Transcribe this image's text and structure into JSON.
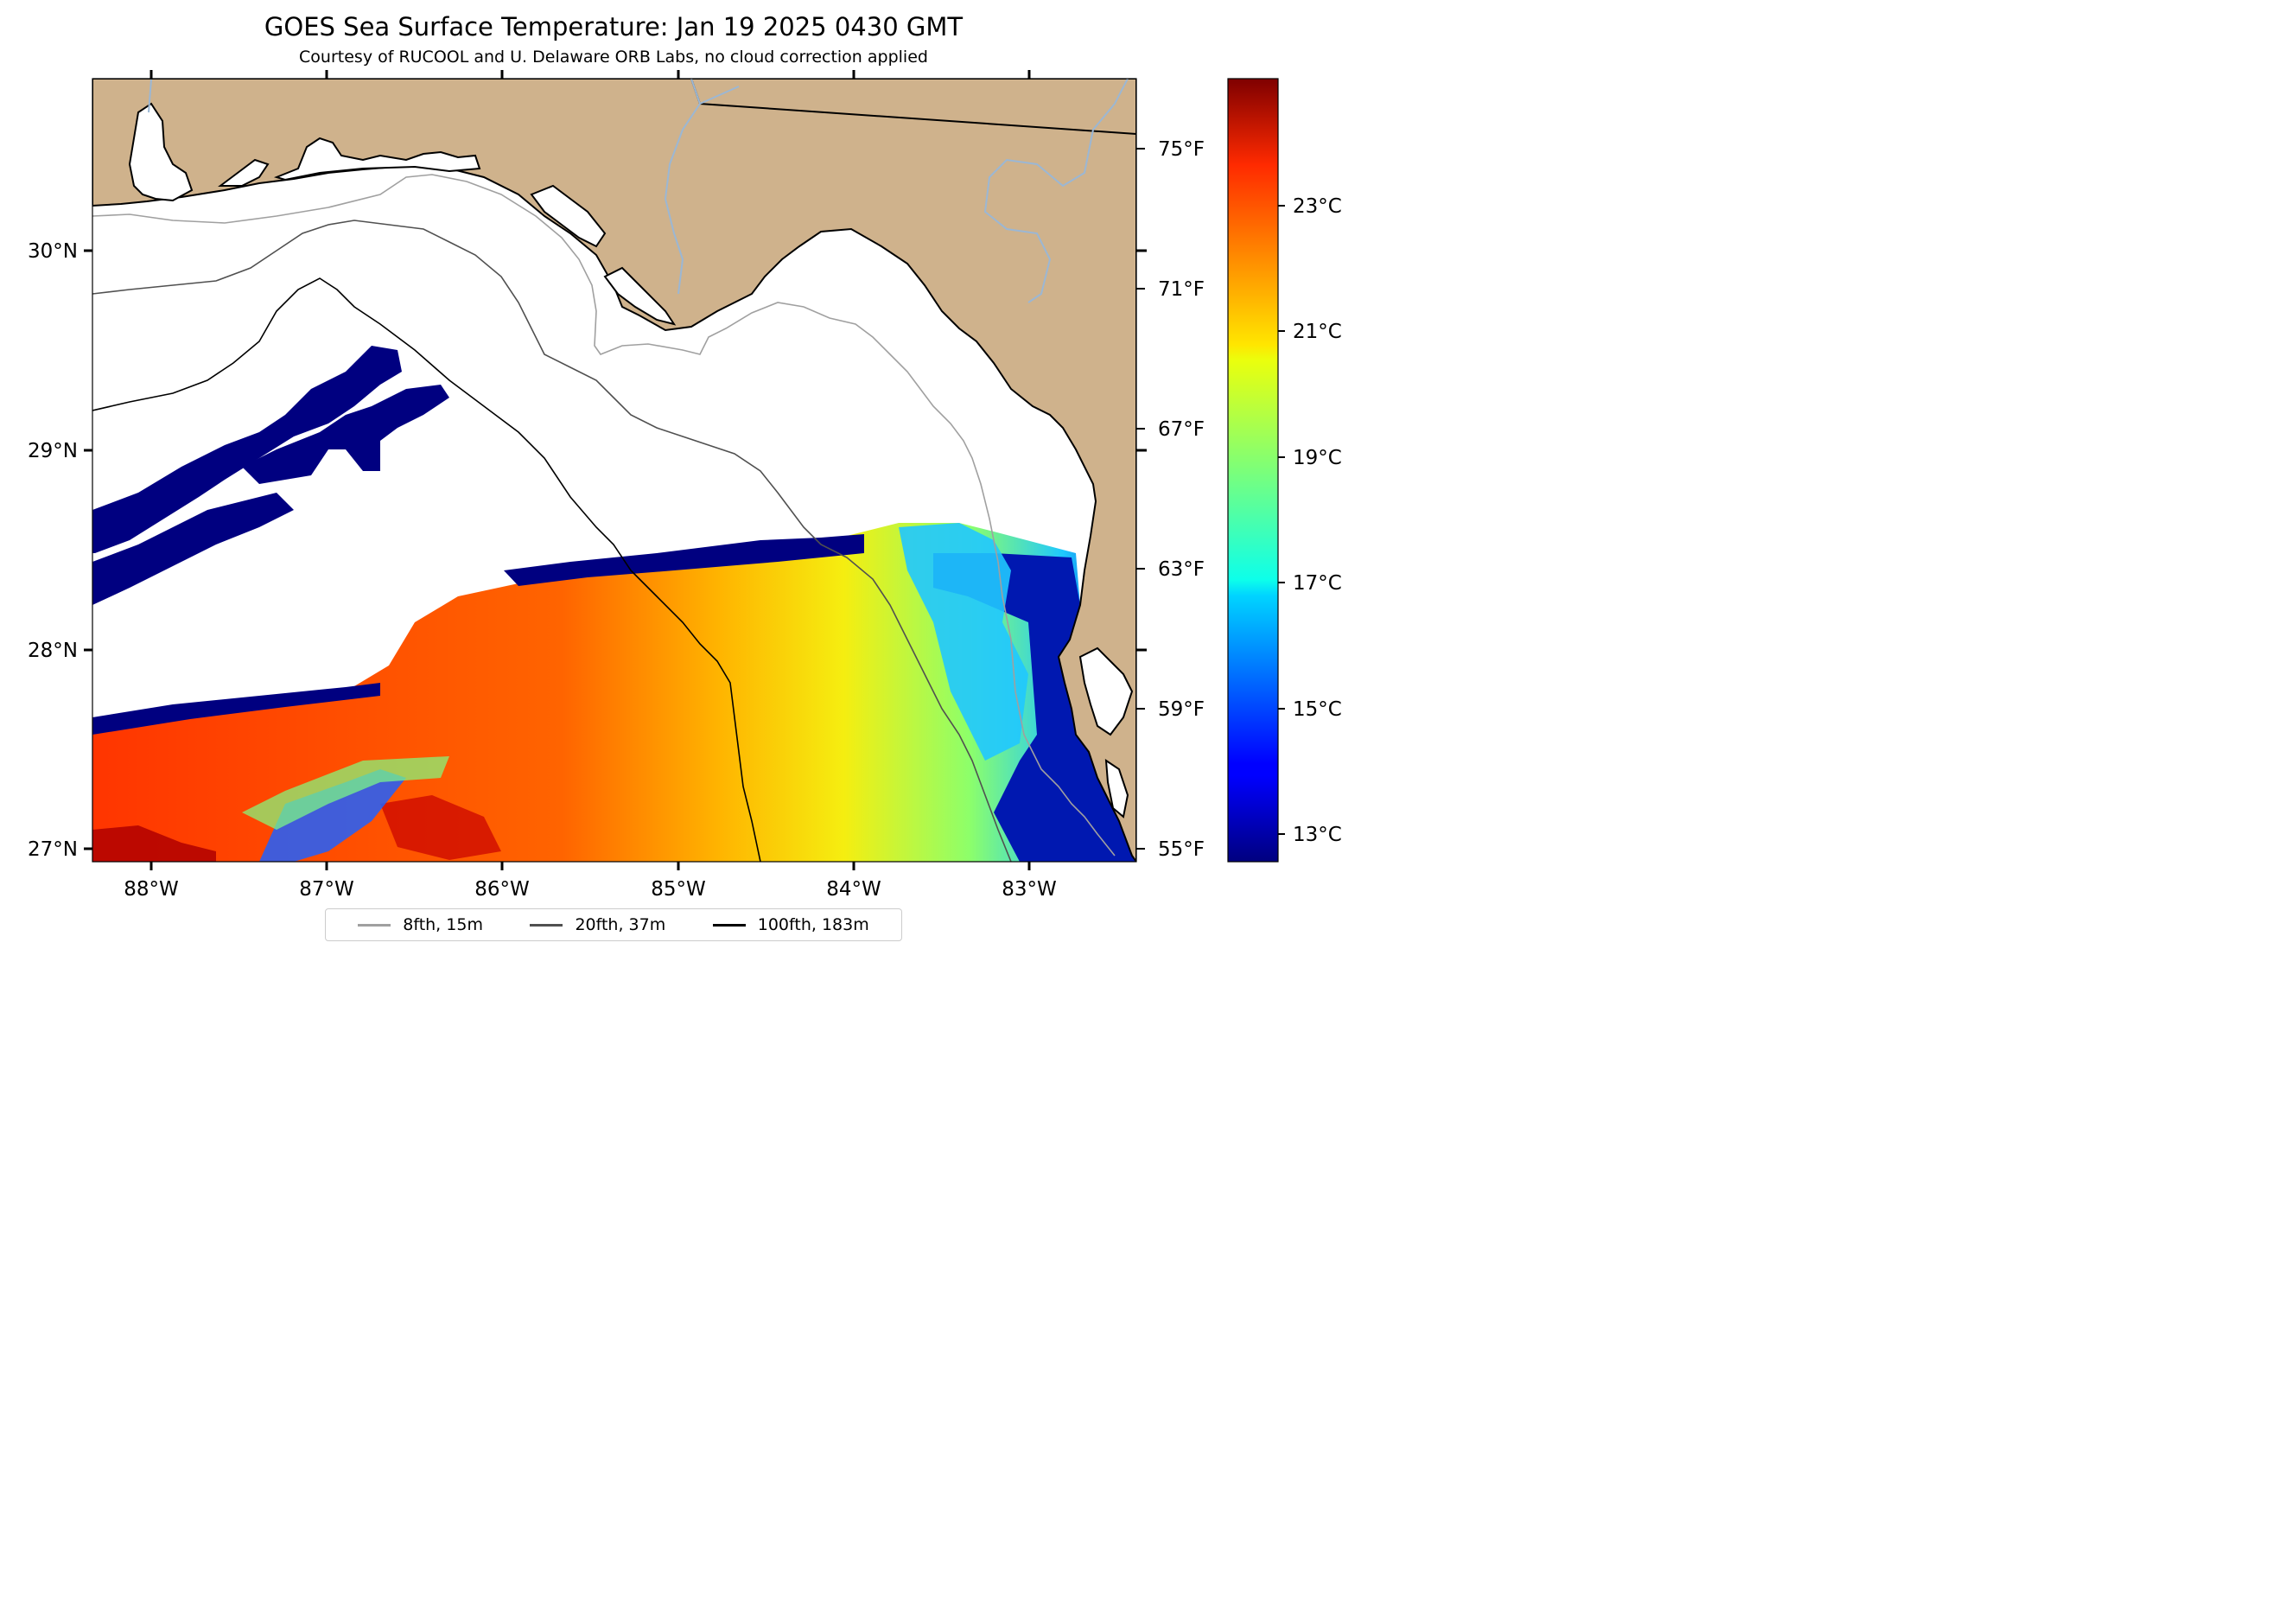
{
  "title": "GOES Sea Surface Temperature: Jan 19 2025 0430 GMT",
  "subtitle": "Courtesy of RUCOOL and U. Delaware ORB Labs, no cloud correction applied",
  "map": {
    "region": "Northeastern Gulf of Mexico / Florida Big Bend",
    "colors": {
      "land": "#cfb28c",
      "water_no_data": "#ffffff",
      "coastline": "#000000",
      "rivers": "#9bb7d4"
    },
    "lon_ticks": [
      "88°W",
      "87°W",
      "86°W",
      "85°W",
      "84°W",
      "83°W"
    ],
    "lat_ticks": [
      "30°N",
      "29°N",
      "28°N",
      "27°N"
    ],
    "fahrenheit_ticks": [
      "75°F",
      "71°F",
      "67°F",
      "63°F",
      "59°F",
      "55°F"
    ]
  },
  "colorbar": {
    "colormap": "jet",
    "labels": [
      "23°C",
      "21°C",
      "19°C",
      "17°C",
      "15°C",
      "13°C"
    ]
  },
  "legend": {
    "items": [
      {
        "label": "8fth, 15m",
        "color": "#a0a0a0"
      },
      {
        "label": "20fth, 37m",
        "color": "#505050"
      },
      {
        "label": "100fth, 183m",
        "color": "#000000"
      }
    ]
  }
}
